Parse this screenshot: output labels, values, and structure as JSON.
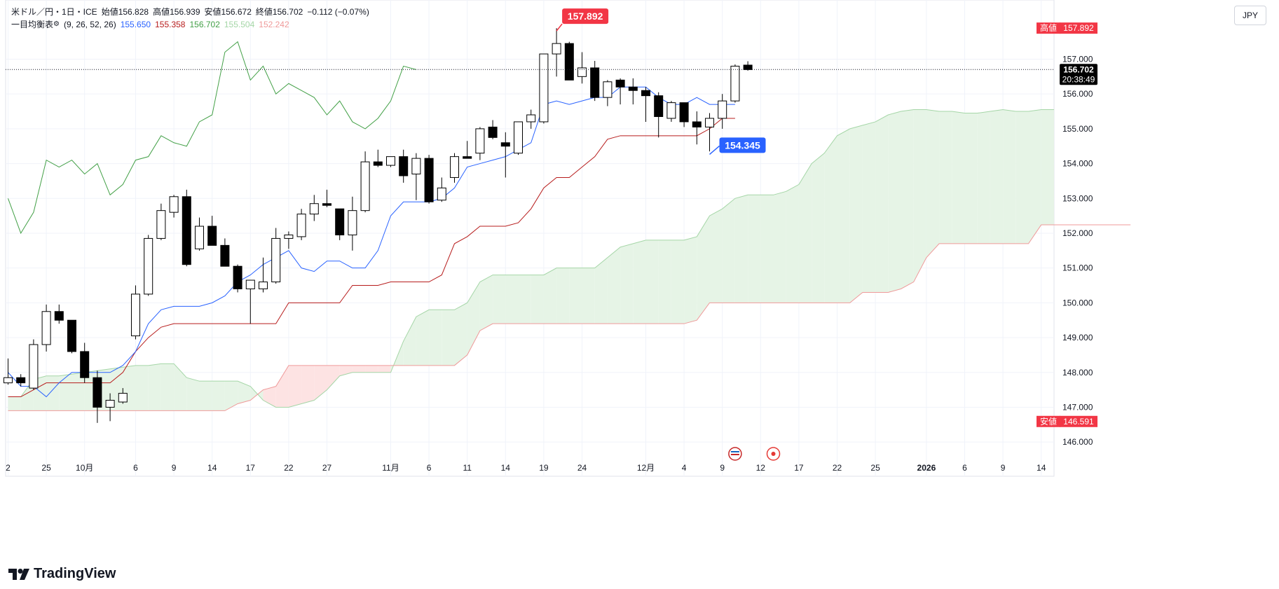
{
  "legend": {
    "symbol_line": "米ドル／円・1日・ICE",
    "open_label": "始値",
    "open": "156.828",
    "high_label": "高値",
    "high": "156.939",
    "low_label": "安値",
    "low": "156.672",
    "close_label": "終値",
    "close": "156.702",
    "change": "−0.112 (−0.07%)",
    "indicator_name": "一目均衡表",
    "indicator_params": "(9, 26, 52, 26)",
    "ind_values": [
      "155.650",
      "155.358",
      "156.702",
      "155.504",
      "152.242"
    ]
  },
  "currency_button": "JPY",
  "brand": "TradingView",
  "colors": {
    "up_body": "#ffffff",
    "down_body": "#000000",
    "tenkan": "#2962ff",
    "kijun": "#b71c1c",
    "chikou": "#43a047",
    "span_a": "#a5d6a7",
    "span_b": "#ef9a9a",
    "cloud_green": "#e6f4e6",
    "cloud_red": "#fde3e3",
    "high_tag": "#f23645",
    "low_callout": "#2962ff",
    "last_price_tag": "#000000"
  },
  "chart_data": {
    "type": "candlestick",
    "title": "米ドル／円・1日・ICE",
    "ylim": [
      145.5,
      158.7
    ],
    "y_ticks": [
      "146.000",
      "147.000",
      "148.000",
      "149.000",
      "150.000",
      "151.000",
      "152.000",
      "153.000",
      "154.000",
      "155.000",
      "156.000",
      "157.000"
    ],
    "x_ticks": [
      {
        "i": 0,
        "label": "2"
      },
      {
        "i": 3,
        "label": "25"
      },
      {
        "i": 6,
        "label": "10月"
      },
      {
        "i": 10,
        "label": "6"
      },
      {
        "i": 13,
        "label": "9"
      },
      {
        "i": 16,
        "label": "14"
      },
      {
        "i": 19,
        "label": "17"
      },
      {
        "i": 22,
        "label": "22"
      },
      {
        "i": 25,
        "label": "27"
      },
      {
        "i": 30,
        "label": "11月"
      },
      {
        "i": 33,
        "label": "6"
      },
      {
        "i": 36,
        "label": "11"
      },
      {
        "i": 39,
        "label": "14"
      },
      {
        "i": 42,
        "label": "19"
      },
      {
        "i": 45,
        "label": "24"
      },
      {
        "i": 50,
        "label": "12月"
      },
      {
        "i": 53,
        "label": "4"
      },
      {
        "i": 56,
        "label": "9"
      },
      {
        "i": 59,
        "label": "12"
      },
      {
        "i": 62,
        "label": "17"
      },
      {
        "i": 65,
        "label": "22"
      },
      {
        "i": 68,
        "label": "25"
      },
      {
        "i": 72,
        "label": "2026"
      },
      {
        "i": 75,
        "label": "6"
      },
      {
        "i": 78,
        "label": "9"
      },
      {
        "i": 81,
        "label": "14"
      }
    ],
    "candles": [
      [
        147.7,
        148.4,
        147.65,
        147.85
      ],
      [
        147.85,
        147.95,
        147.6,
        147.7
      ],
      [
        147.55,
        148.95,
        147.5,
        148.8
      ],
      [
        148.8,
        149.95,
        148.6,
        149.75
      ],
      [
        149.75,
        149.95,
        149.4,
        149.5
      ],
      [
        149.5,
        149.5,
        148.55,
        148.6
      ],
      [
        148.6,
        148.85,
        147.7,
        147.85
      ],
      [
        147.85,
        148.05,
        146.55,
        147.0
      ],
      [
        147.0,
        147.4,
        146.6,
        147.2
      ],
      [
        147.15,
        147.55,
        147.1,
        147.4
      ],
      [
        149.05,
        150.5,
        148.95,
        150.25
      ],
      [
        150.25,
        151.95,
        150.2,
        151.85
      ],
      [
        151.85,
        152.85,
        151.8,
        152.65
      ],
      [
        152.6,
        153.1,
        152.45,
        153.05
      ],
      [
        153.05,
        153.25,
        151.05,
        151.1
      ],
      [
        151.55,
        152.45,
        151.5,
        152.2
      ],
      [
        152.2,
        152.5,
        151.65,
        151.65
      ],
      [
        151.65,
        151.85,
        151.05,
        151.05
      ],
      [
        151.05,
        151.1,
        150.3,
        150.4
      ],
      [
        150.4,
        150.65,
        149.4,
        150.65
      ],
      [
        150.4,
        151.3,
        150.3,
        150.6
      ],
      [
        150.6,
        152.15,
        150.55,
        151.85
      ],
      [
        151.85,
        152.05,
        151.55,
        151.95
      ],
      [
        151.9,
        152.7,
        151.8,
        152.55
      ],
      [
        152.55,
        153.1,
        152.35,
        152.85
      ],
      [
        152.85,
        153.25,
        152.75,
        152.8
      ],
      [
        152.7,
        152.7,
        151.8,
        151.95
      ],
      [
        151.95,
        153.05,
        151.5,
        152.65
      ],
      [
        152.65,
        154.35,
        152.6,
        154.05
      ],
      [
        154.05,
        154.4,
        153.9,
        153.95
      ],
      [
        153.95,
        154.2,
        153.9,
        154.2
      ],
      [
        154.2,
        154.4,
        153.45,
        153.65
      ],
      [
        153.7,
        154.3,
        152.95,
        154.15
      ],
      [
        154.15,
        154.25,
        152.85,
        152.9
      ],
      [
        152.95,
        153.6,
        152.9,
        153.3
      ],
      [
        153.6,
        154.3,
        153.45,
        154.2
      ],
      [
        154.2,
        154.65,
        154.15,
        154.15
      ],
      [
        154.3,
        155.05,
        154.1,
        155.0
      ],
      [
        155.05,
        155.25,
        154.7,
        154.75
      ],
      [
        154.6,
        154.9,
        153.6,
        154.5
      ],
      [
        154.3,
        155.2,
        154.25,
        155.2
      ],
      [
        155.2,
        155.55,
        155.0,
        155.4
      ],
      [
        155.2,
        157.15,
        155.15,
        157.15
      ],
      [
        157.15,
        157.89,
        156.5,
        157.45
      ],
      [
        157.45,
        157.5,
        156.4,
        156.4
      ],
      [
        156.5,
        157.2,
        156.3,
        156.75
      ],
      [
        156.75,
        156.95,
        155.8,
        155.9
      ],
      [
        155.9,
        156.4,
        155.65,
        156.35
      ],
      [
        156.4,
        156.45,
        155.7,
        156.2
      ],
      [
        156.2,
        156.45,
        155.7,
        156.1
      ],
      [
        156.1,
        156.2,
        155.2,
        155.95
      ],
      [
        155.95,
        156.05,
        154.75,
        155.35
      ],
      [
        155.3,
        155.8,
        155.2,
        155.75
      ],
      [
        155.75,
        155.75,
        155.05,
        155.2
      ],
      [
        155.2,
        155.5,
        154.55,
        155.05
      ],
      [
        155.05,
        155.45,
        154.35,
        155.3
      ],
      [
        155.3,
        156.0,
        155.0,
        155.8
      ],
      [
        155.8,
        156.85,
        155.75,
        156.8
      ],
      [
        156.83,
        156.94,
        156.67,
        156.7
      ]
    ],
    "tenkan": {
      "start": 0,
      "values": [
        148.0,
        147.6,
        147.6,
        147.3,
        147.7,
        148.0,
        148.0,
        148.0,
        148.0,
        148.2,
        148.6,
        149.4,
        149.8,
        149.9,
        149.9,
        149.9,
        150.0,
        150.2,
        150.6,
        150.8,
        151.1,
        151.3,
        151.5,
        151.0,
        150.9,
        151.2,
        151.2,
        151.0,
        151.0,
        151.5,
        152.5,
        152.9,
        152.9,
        152.9,
        153.0,
        153.3,
        153.9,
        154.0,
        154.1,
        154.2,
        154.4,
        154.6,
        155.7,
        155.8,
        155.7,
        155.8,
        155.9,
        155.9,
        156.2,
        156.2,
        156.2,
        155.9,
        155.7,
        155.7,
        155.9,
        155.7,
        155.7,
        155.7
      ]
    },
    "kijun": {
      "start": 0,
      "values": [
        147.3,
        147.3,
        147.5,
        147.7,
        147.7,
        147.7,
        147.7,
        147.7,
        147.7,
        148.0,
        148.6,
        149.0,
        149.3,
        149.4,
        149.4,
        149.4,
        149.4,
        149.4,
        149.4,
        149.4,
        149.4,
        149.4,
        150.0,
        150.0,
        150.0,
        150.0,
        150.0,
        150.5,
        150.5,
        150.5,
        150.6,
        150.6,
        150.6,
        150.6,
        150.8,
        151.7,
        151.9,
        152.2,
        152.2,
        152.2,
        152.3,
        152.7,
        153.3,
        153.6,
        153.6,
        153.9,
        154.2,
        154.7,
        154.8,
        154.8,
        154.8,
        154.8,
        154.8,
        154.8,
        154.8,
        155.0,
        155.3,
        155.3
      ]
    },
    "chikou": {
      "start": 0,
      "values": [
        153.0,
        152.0,
        152.6,
        154.1,
        153.9,
        154.1,
        153.7,
        154.0,
        153.1,
        153.4,
        154.1,
        154.2,
        154.8,
        154.6,
        154.5,
        155.2,
        155.4,
        157.2,
        157.5,
        156.4,
        156.8,
        156.0,
        156.3,
        156.1,
        155.9,
        155.4,
        155.8,
        155.2,
        155.0,
        155.3,
        155.8,
        156.8,
        156.7
      ]
    },
    "span_a": {
      "start": 0,
      "values": [
        147.3,
        147.3,
        147.8,
        147.9,
        147.9,
        147.95,
        148.0,
        148.05,
        148.1,
        148.15,
        148.2,
        148.2,
        148.25,
        148.25,
        147.85,
        147.75,
        147.75,
        147.75,
        147.75,
        147.6,
        147.2,
        147.0,
        147.0,
        147.1,
        147.2,
        147.5,
        147.9,
        148.0,
        148.0,
        148.0,
        148.0,
        148.9,
        149.6,
        149.8,
        149.8,
        149.8,
        150.0,
        150.6,
        150.8,
        150.8,
        150.8,
        150.8,
        150.8,
        151.0,
        151.0,
        151.0,
        151.0,
        151.3,
        151.6,
        151.7,
        151.8,
        151.8,
        151.8,
        151.8,
        151.9,
        152.5,
        152.7,
        153.0,
        153.1,
        153.1,
        153.1,
        153.2,
        153.4,
        154.0,
        154.3,
        154.8,
        155.0,
        155.1,
        155.2,
        155.4,
        155.5,
        155.55,
        155.55,
        155.5,
        155.5,
        155.45,
        155.45,
        155.5,
        155.55,
        155.5,
        155.5,
        155.55,
        155.55
      ]
    },
    "span_b": {
      "start": 0,
      "values": [
        146.9,
        146.9,
        146.9,
        146.9,
        146.9,
        146.9,
        146.9,
        146.9,
        146.9,
        146.9,
        146.9,
        146.9,
        146.9,
        146.9,
        146.9,
        146.9,
        146.9,
        146.9,
        147.1,
        147.2,
        147.5,
        147.6,
        148.2,
        148.2,
        148.2,
        148.2,
        148.2,
        148.2,
        148.2,
        148.2,
        148.2,
        148.2,
        148.2,
        148.2,
        148.2,
        148.2,
        148.5,
        149.2,
        149.4,
        149.4,
        149.4,
        149.4,
        149.4,
        149.4,
        149.4,
        149.4,
        149.4,
        149.4,
        149.4,
        149.4,
        149.4,
        149.4,
        149.4,
        149.4,
        149.5,
        150.0,
        150.0,
        150.0,
        150.0,
        150.0,
        150.0,
        150.0,
        150.0,
        150.0,
        150.0,
        150.0,
        150.0,
        150.3,
        150.3,
        150.3,
        150.4,
        150.6,
        151.3,
        151.7,
        151.7,
        151.7,
        151.7,
        151.7,
        151.7,
        151.7,
        151.7,
        152.24,
        152.24,
        152.24,
        152.24,
        152.24,
        152.24,
        152.24,
        152.24
      ]
    },
    "markers": {
      "high_callout": "157.892",
      "low_callout": "154.345",
      "high_tag_label": "高値",
      "high_tag_value": "157.892",
      "low_tag_label": "安値",
      "low_tag_value": "146.591",
      "last_price": "156.702",
      "countdown": "20:38:49"
    }
  }
}
